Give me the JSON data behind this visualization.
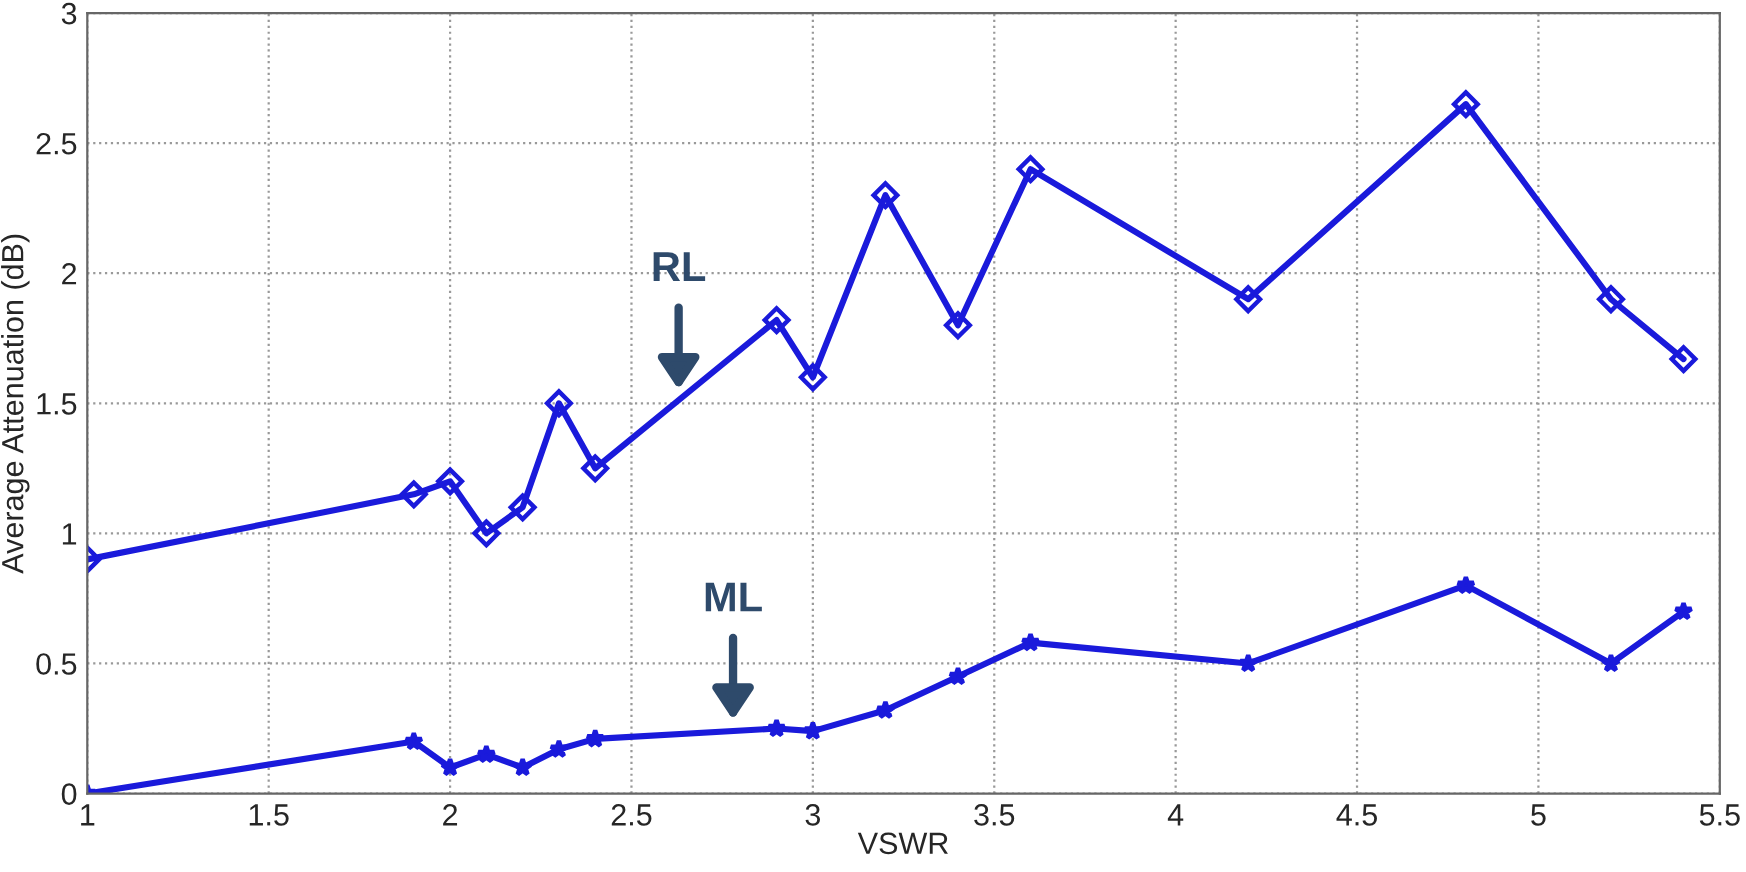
{
  "chart_data": {
    "type": "line",
    "xlabel": "VSWR",
    "ylabel": "Average Attenuation (dB)",
    "xlim": [
      1,
      5.5
    ],
    "xticks": [
      1,
      1.5,
      2,
      2.5,
      3,
      3.5,
      4,
      4.5,
      5,
      5.5
    ],
    "ylim": [
      0,
      3
    ],
    "yticks": [
      0,
      0.5,
      1,
      1.5,
      2,
      2.5,
      3
    ],
    "grid": true,
    "line_style": "solid",
    "x": [
      1,
      1.9,
      2,
      2.1,
      2.2,
      2.3,
      2.4,
      2.9,
      3,
      3.2,
      3.4,
      3.6,
      4.2,
      4.8,
      5.2,
      5.4
    ],
    "series": [
      {
        "color": "#1a1adb",
        "marker": "diamond",
        "values": [
          0.9,
          1.15,
          1.2,
          1.0,
          1.1,
          1.5,
          1.25,
          1.82,
          1.6,
          2.3,
          1.8,
          2.4,
          1.9,
          2.65,
          1.9,
          1.67
        ]
      },
      {
        "color": "#1a1adb",
        "marker": "star",
        "values": [
          0,
          0.2,
          0.1,
          0.15,
          0.1,
          0.17,
          0.21,
          0.25,
          0.24,
          0.32,
          0.45,
          0.58,
          0.5,
          0.8,
          0.5,
          0.7
        ]
      }
    ],
    "annotations": [
      {
        "text": "RL",
        "x": 2.63,
        "y": 1.51
      },
      {
        "text": "ML",
        "x": 2.78,
        "y": 0.24
      }
    ]
  }
}
